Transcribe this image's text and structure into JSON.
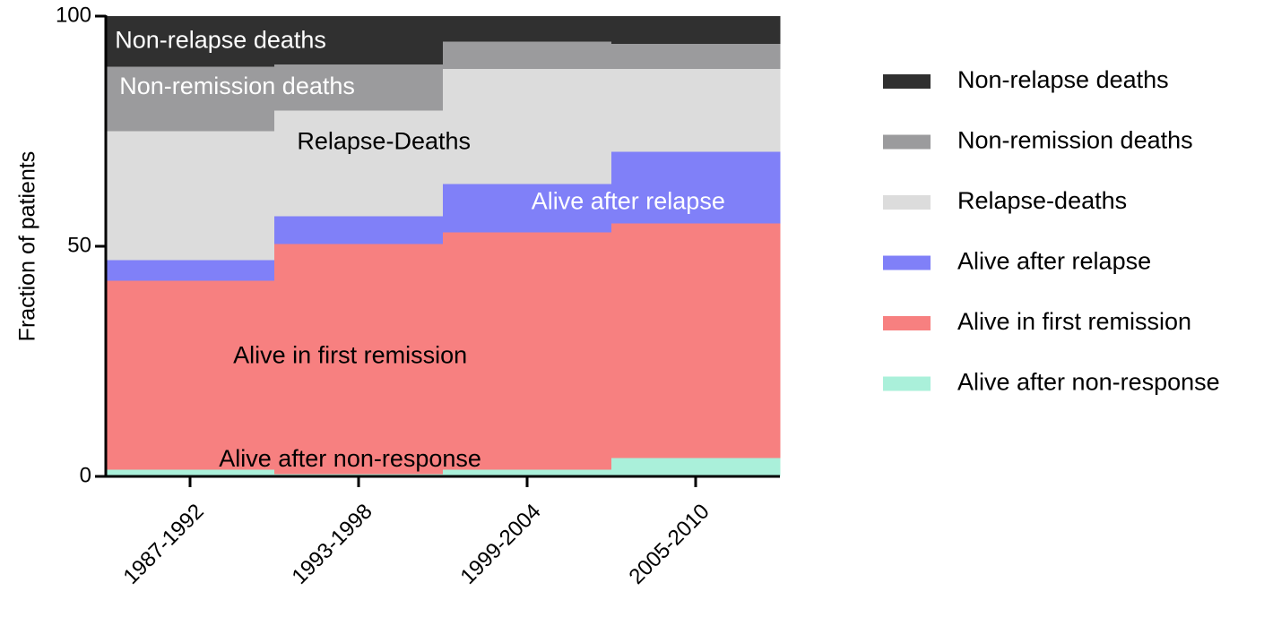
{
  "chart_data": {
    "type": "bar",
    "stacked": true,
    "categories": [
      "1987-1992",
      "1993-1998",
      "1999-2004",
      "2005-2010"
    ],
    "series": [
      {
        "name": "Alive after non-response",
        "color": "#aaf0da",
        "values": [
          1.5,
          0.5,
          1.5,
          4
        ]
      },
      {
        "name": "Alive in first remission",
        "color": "#f78080",
        "values": [
          41,
          50,
          51.5,
          51
        ]
      },
      {
        "name": "Alive after relapse",
        "color": "#8080f8",
        "values": [
          4.5,
          6,
          10.5,
          15.5
        ]
      },
      {
        "name": "Relapse-deaths",
        "color": "#dcdcdc",
        "values": [
          28,
          23,
          25,
          18
        ]
      },
      {
        "name": "Non-remission deaths",
        "color": "#9b9b9d",
        "values": [
          14,
          10,
          6,
          5.5
        ]
      },
      {
        "name": "Non-relapse deaths",
        "color": "#303030",
        "values": [
          11,
          10.5,
          5.5,
          6
        ]
      }
    ],
    "ylabel": "Fraction of patients",
    "xlabel": "",
    "ylim": [
      0,
      100
    ],
    "yticks": [
      0,
      50,
      100
    ],
    "grid": false,
    "legend": {
      "position": "right",
      "items": [
        {
          "label": "Non-relapse deaths",
          "color": "#303030"
        },
        {
          "label": "Non-remission deaths",
          "color": "#9b9b9d"
        },
        {
          "label": "Relapse-deaths",
          "color": "#dcdcdc"
        },
        {
          "label": "Alive after relapse",
          "color": "#8080f8"
        },
        {
          "label": "Alive in first remission",
          "color": "#f78080"
        },
        {
          "label": "Alive after non-response",
          "color": "#aaf0da"
        }
      ]
    },
    "annotations": [
      {
        "text": "Non-relapse deaths",
        "color": "#ffffff"
      },
      {
        "text": "Non-remission deaths",
        "color": "#ffffff"
      },
      {
        "text": "Relapse-Deaths",
        "color": "#000000"
      },
      {
        "text": "Alive after relapse",
        "color": "#ffffff"
      },
      {
        "text": "Alive in first remission",
        "color": "#000000"
      },
      {
        "text": "Alive after non-response",
        "color": "#000000"
      }
    ]
  }
}
